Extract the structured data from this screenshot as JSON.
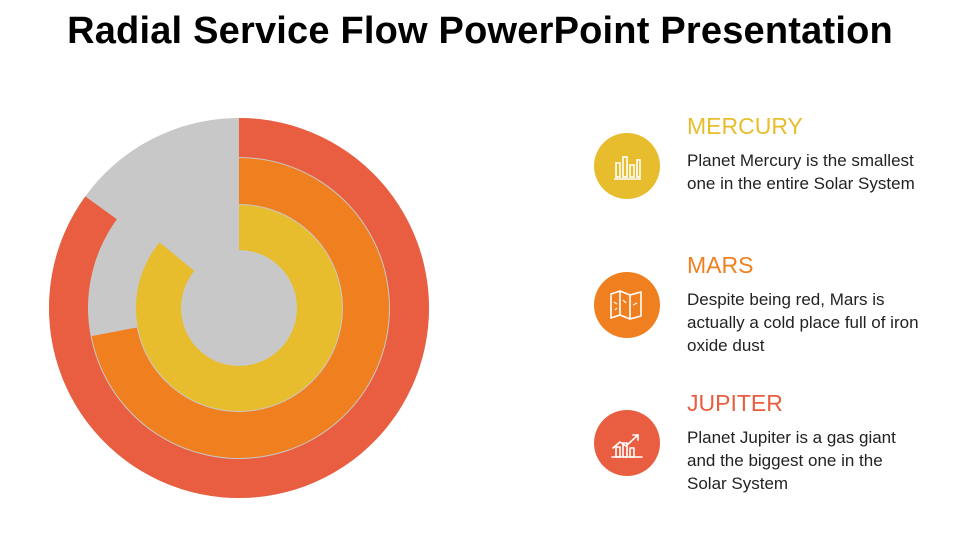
{
  "title": "Radial Service Flow PowerPoint Presentation",
  "colors": {
    "red": "#E95E40",
    "orange": "#F07F20",
    "yellow": "#E8BD2D",
    "gray": "#C8C8C8"
  },
  "chart_data": {
    "type": "radial-bar",
    "rings": [
      {
        "name": "JUPITER",
        "color": "#E95E40",
        "percent": 85
      },
      {
        "name": "MARS",
        "color": "#F07F20",
        "percent": 72
      },
      {
        "name": "MERCURY",
        "color": "#E8BD2D",
        "percent": 86
      }
    ]
  },
  "items": [
    {
      "heading": "MERCURY",
      "description": "Planet Mercury is the smallest one in the entire Solar System",
      "color": "#E8BD2D",
      "icon": "bar-chart-icon"
    },
    {
      "heading": "MARS",
      "description": "Despite being red, Mars is actually a cold place full of iron oxide dust",
      "color": "#F07F20",
      "icon": "map-icon"
    },
    {
      "heading": "JUPITER",
      "description": "Planet Jupiter is a gas giant and the biggest one in the Solar System",
      "color": "#E95E40",
      "icon": "growth-chart-icon"
    }
  ]
}
